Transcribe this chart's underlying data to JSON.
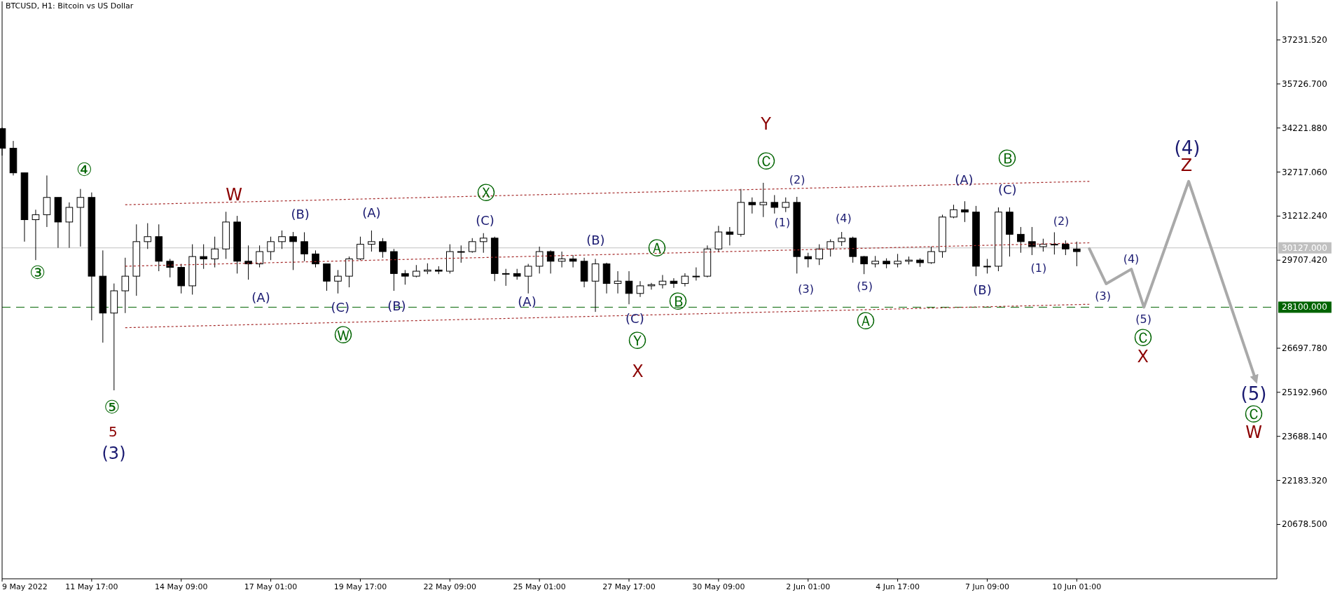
{
  "chart_data": {
    "type": "candlestick",
    "title": "BTCUSD, H1:  Bitcoin vs US Dollar",
    "xlim": [
      "2022-05-09T01:00",
      "2022-06-16T00:00"
    ],
    "xticks": [
      {
        "value": "2022-05-09T01:00",
        "label": "9 May 2022"
      },
      {
        "value": "2022-05-11T17:00",
        "label": "11 May 17:00"
      },
      {
        "value": "2022-05-14T09:00",
        "label": "14 May 09:00"
      },
      {
        "value": "2022-05-17T01:00",
        "label": "17 May 01:00"
      },
      {
        "value": "2022-05-19T17:00",
        "label": "19 May 17:00"
      },
      {
        "value": "2022-05-22T09:00",
        "label": "22 May 09:00"
      },
      {
        "value": "2022-05-25T01:00",
        "label": "25 May 01:00"
      },
      {
        "value": "2022-05-27T17:00",
        "label": "27 May 17:00"
      },
      {
        "value": "2022-05-30T09:00",
        "label": "30 May 09:00"
      },
      {
        "value": "2022-06-02T01:00",
        "label": "2 Jun 01:00"
      },
      {
        "value": "2022-06-04T17:00",
        "label": "4 Jun 17:00"
      },
      {
        "value": "2022-06-07T09:00",
        "label": "7 Jun 09:00"
      },
      {
        "value": "2022-06-10T01:00",
        "label": "10 Jun 01:00"
      }
    ],
    "ylim": [
      18822,
      38547
    ],
    "yticks": [
      {
        "value": 37231.52,
        "label": "37231.520"
      },
      {
        "value": 35726.7,
        "label": "35726.700"
      },
      {
        "value": 34221.88,
        "label": "34221.880"
      },
      {
        "value": 32717.06,
        "label": "32717.060"
      },
      {
        "value": 31212.24,
        "label": "31212.240"
      },
      {
        "value": 29707.42,
        "label": "29707.420"
      },
      {
        "value": 26697.78,
        "label": "26697.780"
      },
      {
        "value": 25192.96,
        "label": "25192.960"
      },
      {
        "value": 23688.14,
        "label": "23688.140"
      },
      {
        "value": 22183.32,
        "label": "22183.320"
      },
      {
        "value": 20678.5,
        "label": "20678.500"
      }
    ],
    "series": [
      {
        "color": "#000000",
        "x": [
          "2022-05-09T01:00",
          "2022-05-09T09:00",
          "2022-05-09T17:00",
          "2022-05-10T01:00",
          "2022-05-10T09:00",
          "2022-05-10T17:00",
          "2022-05-11T01:00",
          "2022-05-11T09:00",
          "2022-05-11T17:00",
          "2022-05-12T01:00",
          "2022-05-12T09:00",
          "2022-05-12T17:00",
          "2022-05-13T01:00",
          "2022-05-13T09:00",
          "2022-05-13T17:00",
          "2022-05-14T01:00",
          "2022-05-14T09:00",
          "2022-05-14T17:00",
          "2022-05-15T01:00",
          "2022-05-15T09:00",
          "2022-05-15T17:00",
          "2022-05-16T01:00",
          "2022-05-16T09:00",
          "2022-05-16T17:00",
          "2022-05-17T01:00",
          "2022-05-17T09:00",
          "2022-05-17T17:00",
          "2022-05-18T01:00",
          "2022-05-18T09:00",
          "2022-05-18T17:00",
          "2022-05-19T01:00",
          "2022-05-19T09:00",
          "2022-05-19T17:00",
          "2022-05-20T01:00",
          "2022-05-20T09:00",
          "2022-05-20T17:00",
          "2022-05-21T01:00",
          "2022-05-21T09:00",
          "2022-05-21T17:00",
          "2022-05-22T01:00",
          "2022-05-22T09:00",
          "2022-05-22T17:00",
          "2022-05-23T01:00",
          "2022-05-23T09:00",
          "2022-05-23T17:00",
          "2022-05-24T01:00",
          "2022-05-24T09:00",
          "2022-05-24T17:00",
          "2022-05-25T01:00",
          "2022-05-25T09:00",
          "2022-05-25T17:00",
          "2022-05-26T01:00",
          "2022-05-26T09:00",
          "2022-05-26T17:00",
          "2022-05-27T01:00",
          "2022-05-27T09:00",
          "2022-05-27T17:00",
          "2022-05-28T01:00",
          "2022-05-28T09:00",
          "2022-05-28T17:00",
          "2022-05-29T01:00",
          "2022-05-29T09:00",
          "2022-05-29T17:00",
          "2022-05-30T01:00",
          "2022-05-30T09:00",
          "2022-05-30T17:00",
          "2022-05-31T01:00",
          "2022-05-31T09:00",
          "2022-05-31T17:00",
          "2022-06-01T01:00",
          "2022-06-01T09:00",
          "2022-06-01T17:00",
          "2022-06-02T01:00",
          "2022-06-02T09:00",
          "2022-06-02T17:00",
          "2022-06-03T01:00",
          "2022-06-03T09:00",
          "2022-06-03T17:00",
          "2022-06-04T01:00",
          "2022-06-04T09:00",
          "2022-06-04T17:00",
          "2022-06-05T01:00",
          "2022-06-05T09:00",
          "2022-06-05T17:00",
          "2022-06-06T01:00",
          "2022-06-06T09:00",
          "2022-06-06T17:00",
          "2022-06-07T01:00",
          "2022-06-07T09:00",
          "2022-06-07T17:00",
          "2022-06-08T01:00",
          "2022-06-08T09:00",
          "2022-06-08T17:00",
          "2022-06-09T01:00",
          "2022-06-09T09:00",
          "2022-06-09T17:00",
          "2022-06-10T01:00"
        ],
        "ohlc": [
          [
            34200,
            34240,
            33280,
            33530
          ],
          [
            33530,
            33780,
            32600,
            32690
          ],
          [
            32690,
            32690,
            30340,
            31090
          ],
          [
            31090,
            31430,
            29710,
            31260
          ],
          [
            31260,
            32600,
            30840,
            31850
          ],
          [
            31850,
            31850,
            30130,
            31010
          ],
          [
            31010,
            31680,
            30130,
            31510
          ],
          [
            31510,
            32140,
            30170,
            31850
          ],
          [
            31850,
            32020,
            27650,
            29160
          ],
          [
            29160,
            30040,
            26890,
            27900
          ],
          [
            27900,
            28910,
            25260,
            28660
          ],
          [
            28660,
            29790,
            27900,
            29160
          ],
          [
            29160,
            30930,
            28490,
            30340
          ],
          [
            30340,
            30970,
            30090,
            30510
          ],
          [
            30510,
            30930,
            29330,
            29670
          ],
          [
            29670,
            29750,
            29120,
            29460
          ],
          [
            29460,
            29580,
            28570,
            28830
          ],
          [
            28830,
            30250,
            28530,
            29830
          ],
          [
            29830,
            30250,
            29410,
            29750
          ],
          [
            29750,
            30510,
            29460,
            30090
          ],
          [
            30090,
            31360,
            29750,
            31010
          ],
          [
            31010,
            31220,
            29250,
            29670
          ],
          [
            29670,
            30210,
            29040,
            29580
          ],
          [
            29580,
            30210,
            29460,
            30000
          ],
          [
            30000,
            30510,
            29710,
            30340
          ],
          [
            30340,
            30720,
            30090,
            30510
          ],
          [
            30510,
            30670,
            29370,
            30340
          ],
          [
            30340,
            30660,
            29670,
            29920
          ],
          [
            29920,
            30040,
            29460,
            29580
          ],
          [
            29580,
            29580,
            28660,
            28990
          ],
          [
            28990,
            29370,
            28570,
            29160
          ],
          [
            29160,
            29830,
            28780,
            29750
          ],
          [
            29750,
            30510,
            29710,
            30250
          ],
          [
            30250,
            30720,
            30000,
            30340
          ],
          [
            30340,
            30460,
            29790,
            30000
          ],
          [
            30000,
            30090,
            28660,
            29250
          ],
          [
            29250,
            29370,
            28870,
            29160
          ],
          [
            29160,
            29540,
            29120,
            29330
          ],
          [
            29330,
            29600,
            29230,
            29370
          ],
          [
            29370,
            29500,
            29230,
            29330
          ],
          [
            29330,
            30250,
            29250,
            30000
          ],
          [
            30000,
            30210,
            29620,
            30000
          ],
          [
            30000,
            30460,
            29960,
            30340
          ],
          [
            30340,
            30630,
            29960,
            30460
          ],
          [
            30460,
            30510,
            28990,
            29250
          ],
          [
            29250,
            29410,
            28830,
            29250
          ],
          [
            29250,
            29410,
            29040,
            29160
          ],
          [
            29160,
            29580,
            28570,
            29500
          ],
          [
            29500,
            30170,
            29250,
            30000
          ],
          [
            30000,
            30040,
            29250,
            29670
          ],
          [
            29670,
            30000,
            29460,
            29750
          ],
          [
            29750,
            29880,
            29460,
            29670
          ],
          [
            29670,
            29790,
            28780,
            28990
          ],
          [
            28990,
            29750,
            27940,
            29580
          ],
          [
            29580,
            29620,
            28570,
            28910
          ],
          [
            28910,
            29330,
            28570,
            28990
          ],
          [
            28990,
            29330,
            28200,
            28570
          ],
          [
            28570,
            28990,
            28450,
            28830
          ],
          [
            28830,
            28930,
            28700,
            28870
          ],
          [
            28870,
            29200,
            28740,
            28990
          ],
          [
            28990,
            29090,
            28760,
            28910
          ],
          [
            28910,
            29260,
            28810,
            29160
          ],
          [
            29160,
            29460,
            29010,
            29160
          ],
          [
            29160,
            30210,
            29120,
            30090
          ],
          [
            30090,
            30880,
            30000,
            30670
          ],
          [
            30670,
            30840,
            30210,
            30590
          ],
          [
            30590,
            32140,
            30510,
            31680
          ],
          [
            31680,
            31850,
            31300,
            31600
          ],
          [
            31600,
            32350,
            31180,
            31680
          ],
          [
            31680,
            31930,
            31300,
            31510
          ],
          [
            31510,
            31850,
            31350,
            31680
          ],
          [
            31680,
            31870,
            29250,
            29830
          ],
          [
            29830,
            29960,
            29460,
            29750
          ],
          [
            29750,
            30250,
            29540,
            30090
          ],
          [
            30090,
            30420,
            29830,
            30340
          ],
          [
            30340,
            30670,
            30190,
            30460
          ],
          [
            30460,
            30510,
            29620,
            29830
          ],
          [
            29830,
            29850,
            29230,
            29580
          ],
          [
            29580,
            29850,
            29460,
            29670
          ],
          [
            29670,
            29770,
            29430,
            29580
          ],
          [
            29580,
            29920,
            29460,
            29670
          ],
          [
            29670,
            29830,
            29560,
            29710
          ],
          [
            29710,
            29770,
            29480,
            29620
          ],
          [
            29620,
            30170,
            29580,
            30000
          ],
          [
            30000,
            31260,
            29790,
            31180
          ],
          [
            31180,
            31600,
            31140,
            31430
          ],
          [
            31430,
            31720,
            31010,
            31350
          ],
          [
            31350,
            31560,
            29160,
            29500
          ],
          [
            29500,
            29750,
            29250,
            29500
          ],
          [
            29500,
            31510,
            29330,
            31350
          ],
          [
            31350,
            31510,
            29830,
            30590
          ],
          [
            30590,
            30840,
            29960,
            30340
          ],
          [
            30340,
            30840,
            29880,
            30170
          ],
          [
            30170,
            30440,
            30000,
            30250
          ],
          [
            30250,
            30660,
            29900,
            30250
          ],
          [
            30250,
            30380,
            29880,
            30090
          ],
          [
            30090,
            30340,
            29500,
            30000
          ]
        ]
      },
      {
        "type": "line",
        "color": "#a9a9a9",
        "line_style": "solid",
        "x": [
          "2022-06-10T10:00",
          "2022-06-10T22:00",
          "2022-06-11T16:00",
          "2022-06-12T01:00",
          "2022-06-13T09:00",
          "2022-06-15T09:00"
        ],
        "values": [
          30100,
          28900,
          29400,
          28100,
          32400,
          25600
        ]
      },
      {
        "type": "line",
        "color": "#a52a2a",
        "line_style": "dotted",
        "x": [
          "2022-05-12T17:00",
          "2022-06-10T10:00"
        ],
        "values": [
          31600,
          32400
        ]
      },
      {
        "type": "line",
        "color": "#a52a2a",
        "line_style": "dotted",
        "x": [
          "2022-05-12T17:00",
          "2022-06-10T10:00"
        ],
        "values": [
          29500,
          30300
        ]
      },
      {
        "type": "line",
        "color": "#a52a2a",
        "line_style": "dotted",
        "x": [
          "2022-05-12T17:00",
          "2022-06-10T10:00"
        ],
        "values": [
          27400,
          28200
        ]
      }
    ],
    "ref_lines": [
      {
        "axis": "y",
        "value": 30127,
        "label": "30127.000",
        "color": "#c0c0c0",
        "line_style": "solid"
      },
      {
        "axis": "y",
        "value": 28100,
        "label": "28100.000",
        "color": "#006400",
        "line_style": "dashed"
      }
    ],
    "annotations": [
      "③",
      "④",
      "⑤",
      "5",
      "(3)",
      "W",
      "(A)",
      "(B)",
      "(C)",
      "Ⓦ",
      "(A)",
      "(B)",
      "Ⓧ",
      "(C)",
      "(A)",
      "(B)",
      "(C)",
      "Ⓨ",
      "X",
      "Ⓐ",
      "Ⓑ",
      "Y",
      "Ⓒ",
      "(1)",
      "(2)",
      "(3)",
      "(4)",
      "(5)",
      "Ⓐ",
      "(A)",
      "(B)",
      "Ⓑ",
      "(C)",
      "(1)",
      "(2)",
      "(3)",
      "(4)",
      "(5)",
      "Ⓒ",
      "X",
      "(4)",
      "Z",
      "(5)",
      "Ⓒ",
      "W"
    ]
  }
}
